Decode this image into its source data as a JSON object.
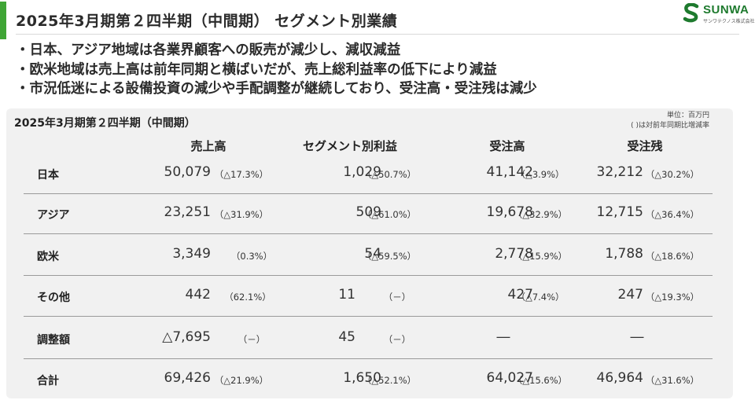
{
  "header": {
    "title": "2025年3月期第２四半期（中間期） セグメント別業績",
    "logo_text": "SUNWA",
    "logo_sub": "サンワテクノス株式会社"
  },
  "bullets": [
    "・日本、アジア地域は各業界顧客への販売が減少し、減収減益",
    "・欧米地域は売上高は前年同期と横ばいだが、売上総利益率の低下により減益",
    "・市況低迷による設備投資の減少や手配調整が継続しており、受注高・受注残は減少"
  ],
  "table": {
    "title": "2025年3月期第２四半期（中間期）",
    "unit": "単位：百万円",
    "note": "( )は対前年同期比増減率",
    "columns": [
      "売上高",
      "セグメント別利益",
      "受注高",
      "受注残"
    ],
    "rows": [
      {
        "label": "日本",
        "cells": [
          [
            "50,079",
            "（△17.3%）"
          ],
          [
            "1,029",
            "（△50.7%）"
          ],
          [
            "41,142",
            "（△3.9%）"
          ],
          [
            "32,212",
            "（△30.2%）"
          ]
        ]
      },
      {
        "label": "アジア",
        "cells": [
          [
            "23,251",
            "（△31.9%）"
          ],
          [
            "509",
            "（△61.0%）"
          ],
          [
            "19,678",
            "（△32.9%）"
          ],
          [
            "12,715",
            "（△36.4%）"
          ]
        ]
      },
      {
        "label": "欧米",
        "cells": [
          [
            "3,349",
            "（0.3%）"
          ],
          [
            "54",
            "（△59.5%）"
          ],
          [
            "2,778",
            "（△15.9%）"
          ],
          [
            "1,788",
            "（△18.6%）"
          ]
        ]
      },
      {
        "label": "その他",
        "cells": [
          [
            "442",
            "（62.1%）"
          ],
          [
            "11",
            "（－）"
          ],
          [
            "427",
            "（△7.4%）"
          ],
          [
            "247",
            "（△19.3%）"
          ]
        ]
      },
      {
        "label": "調整額",
        "cells": [
          [
            "△7,695",
            "（－）"
          ],
          [
            "45",
            "（－）"
          ],
          [
            "―",
            ""
          ],
          [
            "―",
            ""
          ]
        ]
      },
      {
        "label": "合計",
        "cells": [
          [
            "69,426",
            "（△21.9%）"
          ],
          [
            "1,650",
            "（△52.1%）"
          ],
          [
            "64,027",
            "（△15.6%）"
          ],
          [
            "46,964",
            "（△31.6%）"
          ]
        ]
      }
    ]
  },
  "colors": {
    "accent_green": "#3fa535",
    "logo_green": "#1e7a2e",
    "panel_bg": "#f1f1f1"
  }
}
